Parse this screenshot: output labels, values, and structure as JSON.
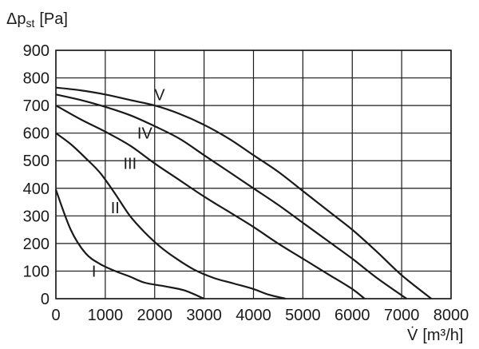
{
  "chart_data": {
    "type": "line",
    "ylabel_main": "Δp",
    "ylabel_sub": "st",
    "ylabel_unit": "[Pa]",
    "xlabel_symbol": "V̇",
    "xlabel_unit": "[m³/h]",
    "xlim": [
      0,
      8000
    ],
    "ylim": [
      0,
      900
    ],
    "x_ticks": [
      "0",
      "1000",
      "2000",
      "3000",
      "4000",
      "5000",
      "6000",
      "7000",
      "8000"
    ],
    "y_ticks": [
      "0",
      "100",
      "200",
      "300",
      "400",
      "500",
      "600",
      "700",
      "800",
      "900"
    ],
    "grid": true,
    "series": [
      {
        "name": "I",
        "points": [
          [
            0,
            395
          ],
          [
            300,
            250
          ],
          [
            600,
            165
          ],
          [
            900,
            125
          ],
          [
            1200,
            100
          ],
          [
            1500,
            80
          ],
          [
            1800,
            58
          ],
          [
            2200,
            45
          ],
          [
            2600,
            30
          ],
          [
            3000,
            0
          ]
        ]
      },
      {
        "name": "II",
        "points": [
          [
            0,
            600
          ],
          [
            300,
            560
          ],
          [
            600,
            510
          ],
          [
            900,
            455
          ],
          [
            1200,
            380
          ],
          [
            1500,
            300
          ],
          [
            1800,
            240
          ],
          [
            2100,
            190
          ],
          [
            2400,
            150
          ],
          [
            2800,
            105
          ],
          [
            3200,
            75
          ],
          [
            3600,
            55
          ],
          [
            4000,
            35
          ],
          [
            4300,
            15
          ],
          [
            4650,
            0
          ]
        ]
      },
      {
        "name": "III",
        "points": [
          [
            0,
            700
          ],
          [
            500,
            650
          ],
          [
            1000,
            605
          ],
          [
            1500,
            555
          ],
          [
            2000,
            490
          ],
          [
            2500,
            430
          ],
          [
            3000,
            370
          ],
          [
            3500,
            315
          ],
          [
            4000,
            260
          ],
          [
            4500,
            200
          ],
          [
            5000,
            145
          ],
          [
            5500,
            90
          ],
          [
            6000,
            35
          ],
          [
            6250,
            0
          ]
        ]
      },
      {
        "name": "IV",
        "points": [
          [
            0,
            740
          ],
          [
            500,
            720
          ],
          [
            1000,
            695
          ],
          [
            1500,
            665
          ],
          [
            2000,
            625
          ],
          [
            2500,
            580
          ],
          [
            3000,
            520
          ],
          [
            3500,
            460
          ],
          [
            4000,
            400
          ],
          [
            4500,
            340
          ],
          [
            5000,
            275
          ],
          [
            5500,
            210
          ],
          [
            6000,
            145
          ],
          [
            6500,
            75
          ],
          [
            7100,
            0
          ]
        ]
      },
      {
        "name": "V",
        "points": [
          [
            0,
            765
          ],
          [
            500,
            755
          ],
          [
            1000,
            740
          ],
          [
            1500,
            720
          ],
          [
            2000,
            700
          ],
          [
            2500,
            670
          ],
          [
            3000,
            630
          ],
          [
            3500,
            580
          ],
          [
            4000,
            520
          ],
          [
            4500,
            460
          ],
          [
            5000,
            390
          ],
          [
            5500,
            320
          ],
          [
            6000,
            250
          ],
          [
            6500,
            170
          ],
          [
            7000,
            85
          ],
          [
            7600,
            0
          ]
        ]
      }
    ],
    "labels": [
      {
        "text": "V",
        "x": 2100,
        "y": 740
      },
      {
        "text": "IV",
        "x": 1800,
        "y": 600
      },
      {
        "text": "III",
        "x": 1500,
        "y": 490
      },
      {
        "text": "II",
        "x": 1200,
        "y": 330
      },
      {
        "text": "I",
        "x": 770,
        "y": 100
      }
    ]
  }
}
